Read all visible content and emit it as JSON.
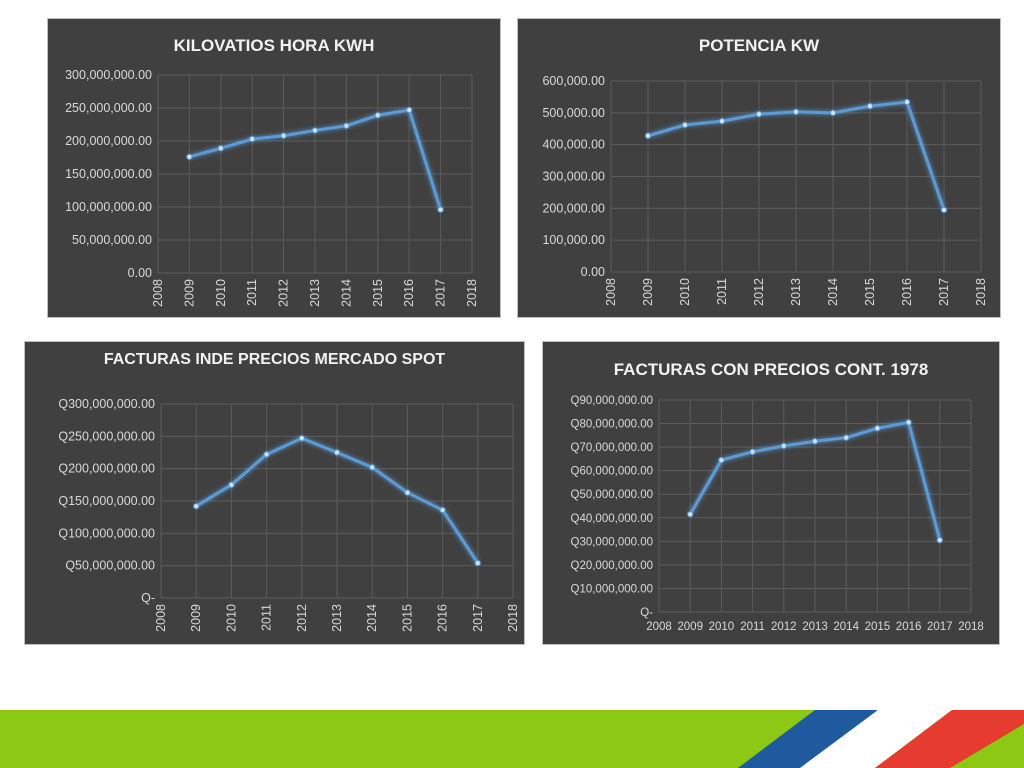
{
  "chart_data": [
    {
      "type": "line",
      "title": "KILOVATIOS HORA KWH",
      "x": [
        2009,
        2010,
        2011,
        2012,
        2013,
        2014,
        2015,
        2016,
        2017
      ],
      "values": [
        176000000,
        189000000,
        203000000,
        208000000,
        216000000,
        223000000,
        239000000,
        247000000,
        96000000
      ],
      "x_ticks": [
        "2008",
        "2009",
        "2010",
        "2011",
        "2012",
        "2013",
        "2014",
        "2015",
        "2016",
        "2017",
        "2018"
      ],
      "y_ticks": [
        "0.00",
        "50,000,000.00",
        "100,000,000.00",
        "150,000,000.00",
        "200,000,000.00",
        "250,000,000.00",
        "300,000,000.00"
      ],
      "xlim": [
        2008,
        2018
      ],
      "ylim": [
        0,
        300000000
      ],
      "grid": true,
      "x_tick_rotation": "vertical",
      "line_color": "#5b9bd5"
    },
    {
      "type": "line",
      "title": "POTENCIA KW",
      "x": [
        2009,
        2010,
        2011,
        2012,
        2013,
        2014,
        2015,
        2016,
        2017
      ],
      "values": [
        428000,
        462000,
        474000,
        496000,
        503000,
        500000,
        521000,
        534000,
        195000
      ],
      "x_ticks": [
        "2008",
        "2009",
        "2010",
        "2011",
        "2012",
        "2013",
        "2014",
        "2015",
        "2016",
        "2017",
        "2018"
      ],
      "y_ticks": [
        "0.00",
        "100,000.00",
        "200,000.00",
        "300,000.00",
        "400,000.00",
        "500,000.00",
        "600,000.00"
      ],
      "xlim": [
        2008,
        2018
      ],
      "ylim": [
        0,
        600000
      ],
      "grid": true,
      "x_tick_rotation": "vertical",
      "line_color": "#5b9bd5"
    },
    {
      "type": "line",
      "title": "FACTURAS INDE  PRECIOS MERCADO SPOT",
      "x": [
        2009,
        2010,
        2011,
        2012,
        2013,
        2014,
        2015,
        2016,
        2017
      ],
      "values": [
        142000000,
        175000000,
        222000000,
        247000000,
        225000000,
        202000000,
        163000000,
        136000000,
        54000000
      ],
      "x_ticks": [
        "2008",
        "2009",
        "2010",
        "2011",
        "2012",
        "2013",
        "2014",
        "2015",
        "2016",
        "2017",
        "2018"
      ],
      "y_ticks": [
        "Q-",
        "Q50,000,000.00",
        "Q100,000,000.00",
        "Q150,000,000.00",
        "Q200,000,000.00",
        "Q250,000,000.00",
        "Q300,000,000.00"
      ],
      "xlim": [
        2008,
        2018
      ],
      "ylim": [
        0,
        300000000
      ],
      "grid": true,
      "x_tick_rotation": "vertical",
      "line_color": "#5b9bd5"
    },
    {
      "type": "line",
      "title": "FACTURAS CON PRECIOS CONT. 1978",
      "x": [
        2009,
        2010,
        2011,
        2012,
        2013,
        2014,
        2015,
        2016,
        2017
      ],
      "values": [
        41500000,
        64500000,
        68000000,
        70500000,
        72500000,
        74000000,
        78000000,
        80500000,
        30500000
      ],
      "x_ticks": [
        "2008",
        "2009",
        "2010",
        "2011",
        "2012",
        "2013",
        "2014",
        "2015",
        "2016",
        "2017",
        "2018"
      ],
      "y_ticks": [
        "Q-",
        "Q10,000,000.00",
        "Q20,000,000.00",
        "Q30,000,000.00",
        "Q40,000,000.00",
        "Q50,000,000.00",
        "Q60,000,000.00",
        "Q70,000,000.00",
        "Q80,000,000.00",
        "Q90,000,000.00"
      ],
      "xlim": [
        2008,
        2018
      ],
      "ylim": [
        0,
        90000000
      ],
      "grid": true,
      "x_tick_rotation": "horizontal",
      "line_color": "#5b9bd5"
    }
  ],
  "footer": {
    "colors": {
      "green": "#8cc814",
      "blue": "#1f5a9e",
      "white": "#ffffff",
      "red": "#e63c2f"
    }
  }
}
